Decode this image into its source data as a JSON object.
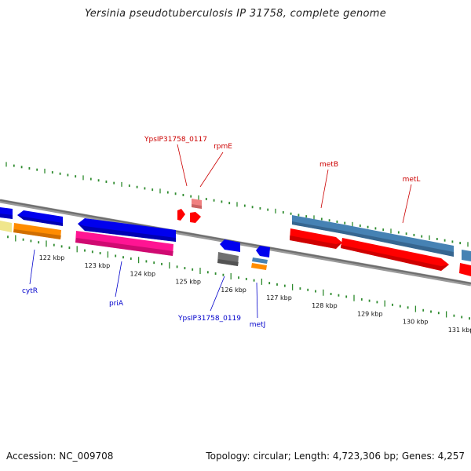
{
  "title": "Yersinia pseudotuberculosis IP 31758, complete genome",
  "footer": {
    "accession": "Accession: NC_009708",
    "summary": "Topology: circular; Length: 4,723,306 bp; Genes: 4,257"
  },
  "scale": {
    "kbp_labels": [
      "122 kbp",
      "123 kbp",
      "124 kbp",
      "125 kbp",
      "126 kbp",
      "127 kbp",
      "128 kbp",
      "129 kbp",
      "130 kbp",
      "131 kbp"
    ]
  },
  "colors": {
    "backbone": "#808080",
    "tick": "#2e8b2e",
    "cds_blue": "#0000ee",
    "cds_orange": "#ff8c00",
    "cds_pink": "#ff1493",
    "cds_red": "#ff0000",
    "cds_steel": "#4682b4",
    "cds_gray": "#707070",
    "cds_khaki": "#f0e68c",
    "trna_pink": "#f08080",
    "forward_label": "#cc0000",
    "reverse_label": "#0000cc"
  },
  "genes": {
    "forward": [
      {
        "name": "YpsIP31758_0117"
      },
      {
        "name": "rpmE"
      },
      {
        "name": "metB"
      },
      {
        "name": "metL"
      }
    ],
    "reverse": [
      {
        "name": "cytR"
      },
      {
        "name": "priA"
      },
      {
        "name": "YpsIP31758_0119"
      },
      {
        "name": "metJ"
      }
    ]
  }
}
